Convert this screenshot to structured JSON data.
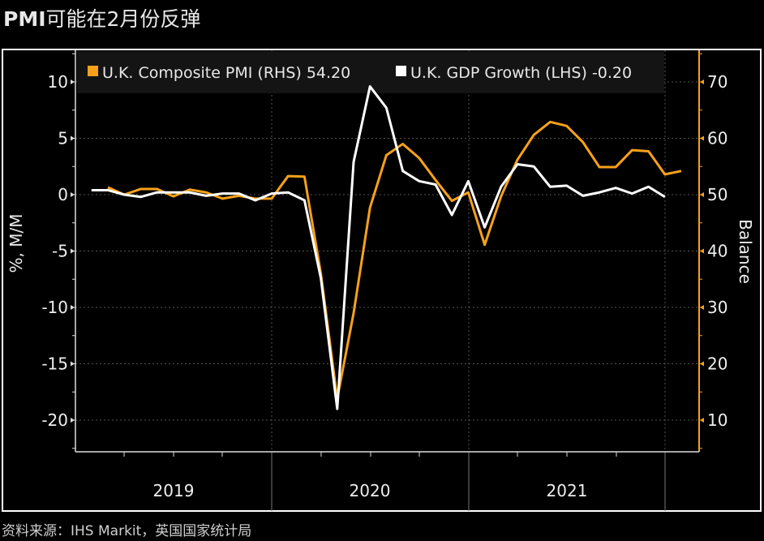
{
  "title": {
    "bold": "PMI",
    "rest": "可能在2月份反弹"
  },
  "source": "资料来源：IHS Markit，英国国家统计局",
  "colors": {
    "pmi": "#f7a11a",
    "gdp": "#ffffff",
    "background": "#000000",
    "legend_bg": "#141414"
  },
  "chart_data": {
    "type": "line",
    "title": "PMI可能在2月份反弹",
    "ylabel_left": "%, M/M",
    "ylabel_right": "Balance",
    "ylim_left": [
      -23,
      12.5
    ],
    "ylim_right": [
      5,
      76
    ],
    "yticks_left": [
      10,
      5,
      0,
      -5,
      -10,
      -15,
      -20
    ],
    "yticks_right": [
      70,
      60,
      50,
      40,
      30,
      20,
      10
    ],
    "xtick_labels": [
      "2019",
      "2020",
      "2021"
    ],
    "grid": true,
    "legend_placement": "top",
    "series": [
      {
        "name": "U.K. Composite PMI (RHS)",
        "legend_label": "U.K. Composite PMI (RHS) 54.20",
        "axis": "right",
        "color": "#f7a11a",
        "start_month": "2019-03",
        "values": [
          51.3,
          50.0,
          51.0,
          51.0,
          49.7,
          50.9,
          50.4,
          49.3,
          49.8,
          49.3,
          49.3,
          53.3,
          53.2,
          36.0,
          13.8,
          29.0,
          47.7,
          57.0,
          59.0,
          56.5,
          52.6,
          48.9,
          50.4,
          41.1,
          49.7,
          56.2,
          60.6,
          62.9,
          62.2,
          59.3,
          54.9,
          54.9,
          57.9,
          57.7,
          53.6,
          54.2
        ]
      },
      {
        "name": "U.K. GDP Growth (LHS)",
        "legend_label": "U.K. GDP Growth (LHS) -0.20",
        "axis": "left",
        "color": "#ffffff",
        "start_month": "2019-02",
        "values": [
          0.4,
          0.4,
          0.0,
          -0.2,
          0.2,
          0.2,
          0.2,
          -0.1,
          0.1,
          0.1,
          -0.5,
          0.1,
          0.2,
          -0.5,
          -7.4,
          -19.0,
          2.9,
          9.6,
          7.7,
          2.1,
          1.2,
          0.9,
          -1.8,
          1.2,
          -2.9,
          0.7,
          2.7,
          2.5,
          0.7,
          0.8,
          -0.1,
          0.2,
          0.6,
          0.1,
          0.7,
          -0.2
        ]
      }
    ]
  }
}
